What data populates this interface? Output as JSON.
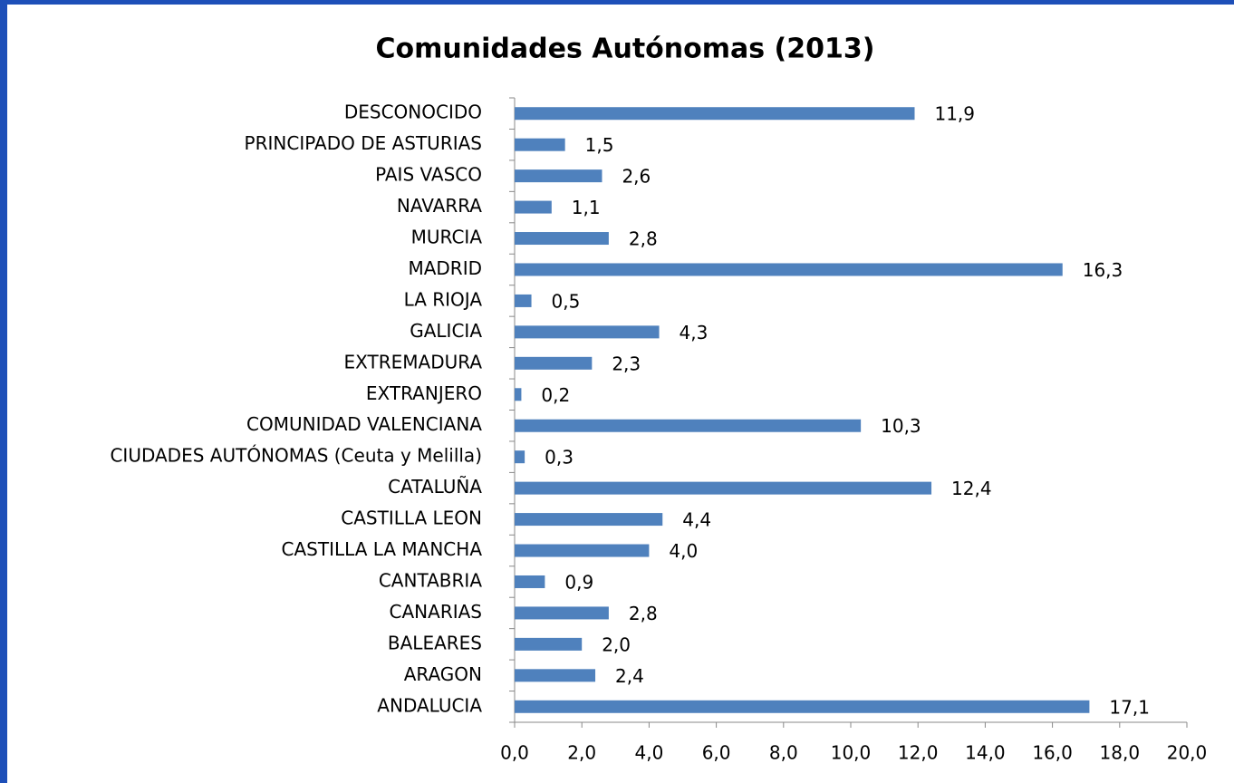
{
  "chart_data": {
    "type": "hbar",
    "title": "Comunidades Autónomas (2013)",
    "categories": [
      "DESCONOCIDO",
      "PRINCIPADO DE ASTURIAS",
      "PAIS VASCO",
      "NAVARRA",
      "MURCIA",
      "MADRID",
      "LA RIOJA",
      "GALICIA",
      "EXTREMADURA",
      "EXTRANJERO",
      "COMUNIDAD VALENCIANA",
      "CIUDADES AUTÓNOMAS (Ceuta y Melilla)",
      "CATALUÑA",
      "CASTILLA LEON",
      "CASTILLA LA MANCHA",
      "CANTABRIA",
      "CANARIAS",
      "BALEARES",
      "ARAGON",
      "ANDALUCIA"
    ],
    "values": [
      11.9,
      1.5,
      2.6,
      1.1,
      2.8,
      16.3,
      0.5,
      4.3,
      2.3,
      0.2,
      10.3,
      0.3,
      12.4,
      4.4,
      4.0,
      0.9,
      2.8,
      2.0,
      2.4,
      17.1
    ],
    "value_labels": [
      "11,9",
      "1,5",
      "2,6",
      "1,1",
      "2,8",
      "16,3",
      "0,5",
      "4,3",
      "2,3",
      "0,2",
      "10,3",
      "0,3",
      "12,4",
      "4,4",
      "4,0",
      "0,9",
      "2,8",
      "2,0",
      "2,4",
      "17,1"
    ],
    "color": "#4f81bd",
    "xlim": [
      0,
      20
    ],
    "xticks": [
      {
        "value": 0,
        "label": "0,0"
      },
      {
        "value": 2,
        "label": "2,0"
      },
      {
        "value": 4,
        "label": "4,0"
      },
      {
        "value": 6,
        "label": "6,0"
      },
      {
        "value": 8,
        "label": "8,0"
      },
      {
        "value": 10,
        "label": "10,0"
      },
      {
        "value": 12,
        "label": "12,0"
      },
      {
        "value": 14,
        "label": "14,0"
      },
      {
        "value": 16,
        "label": "16,0"
      },
      {
        "value": 18,
        "label": "18,0"
      },
      {
        "value": 20,
        "label": "20,0"
      }
    ]
  }
}
